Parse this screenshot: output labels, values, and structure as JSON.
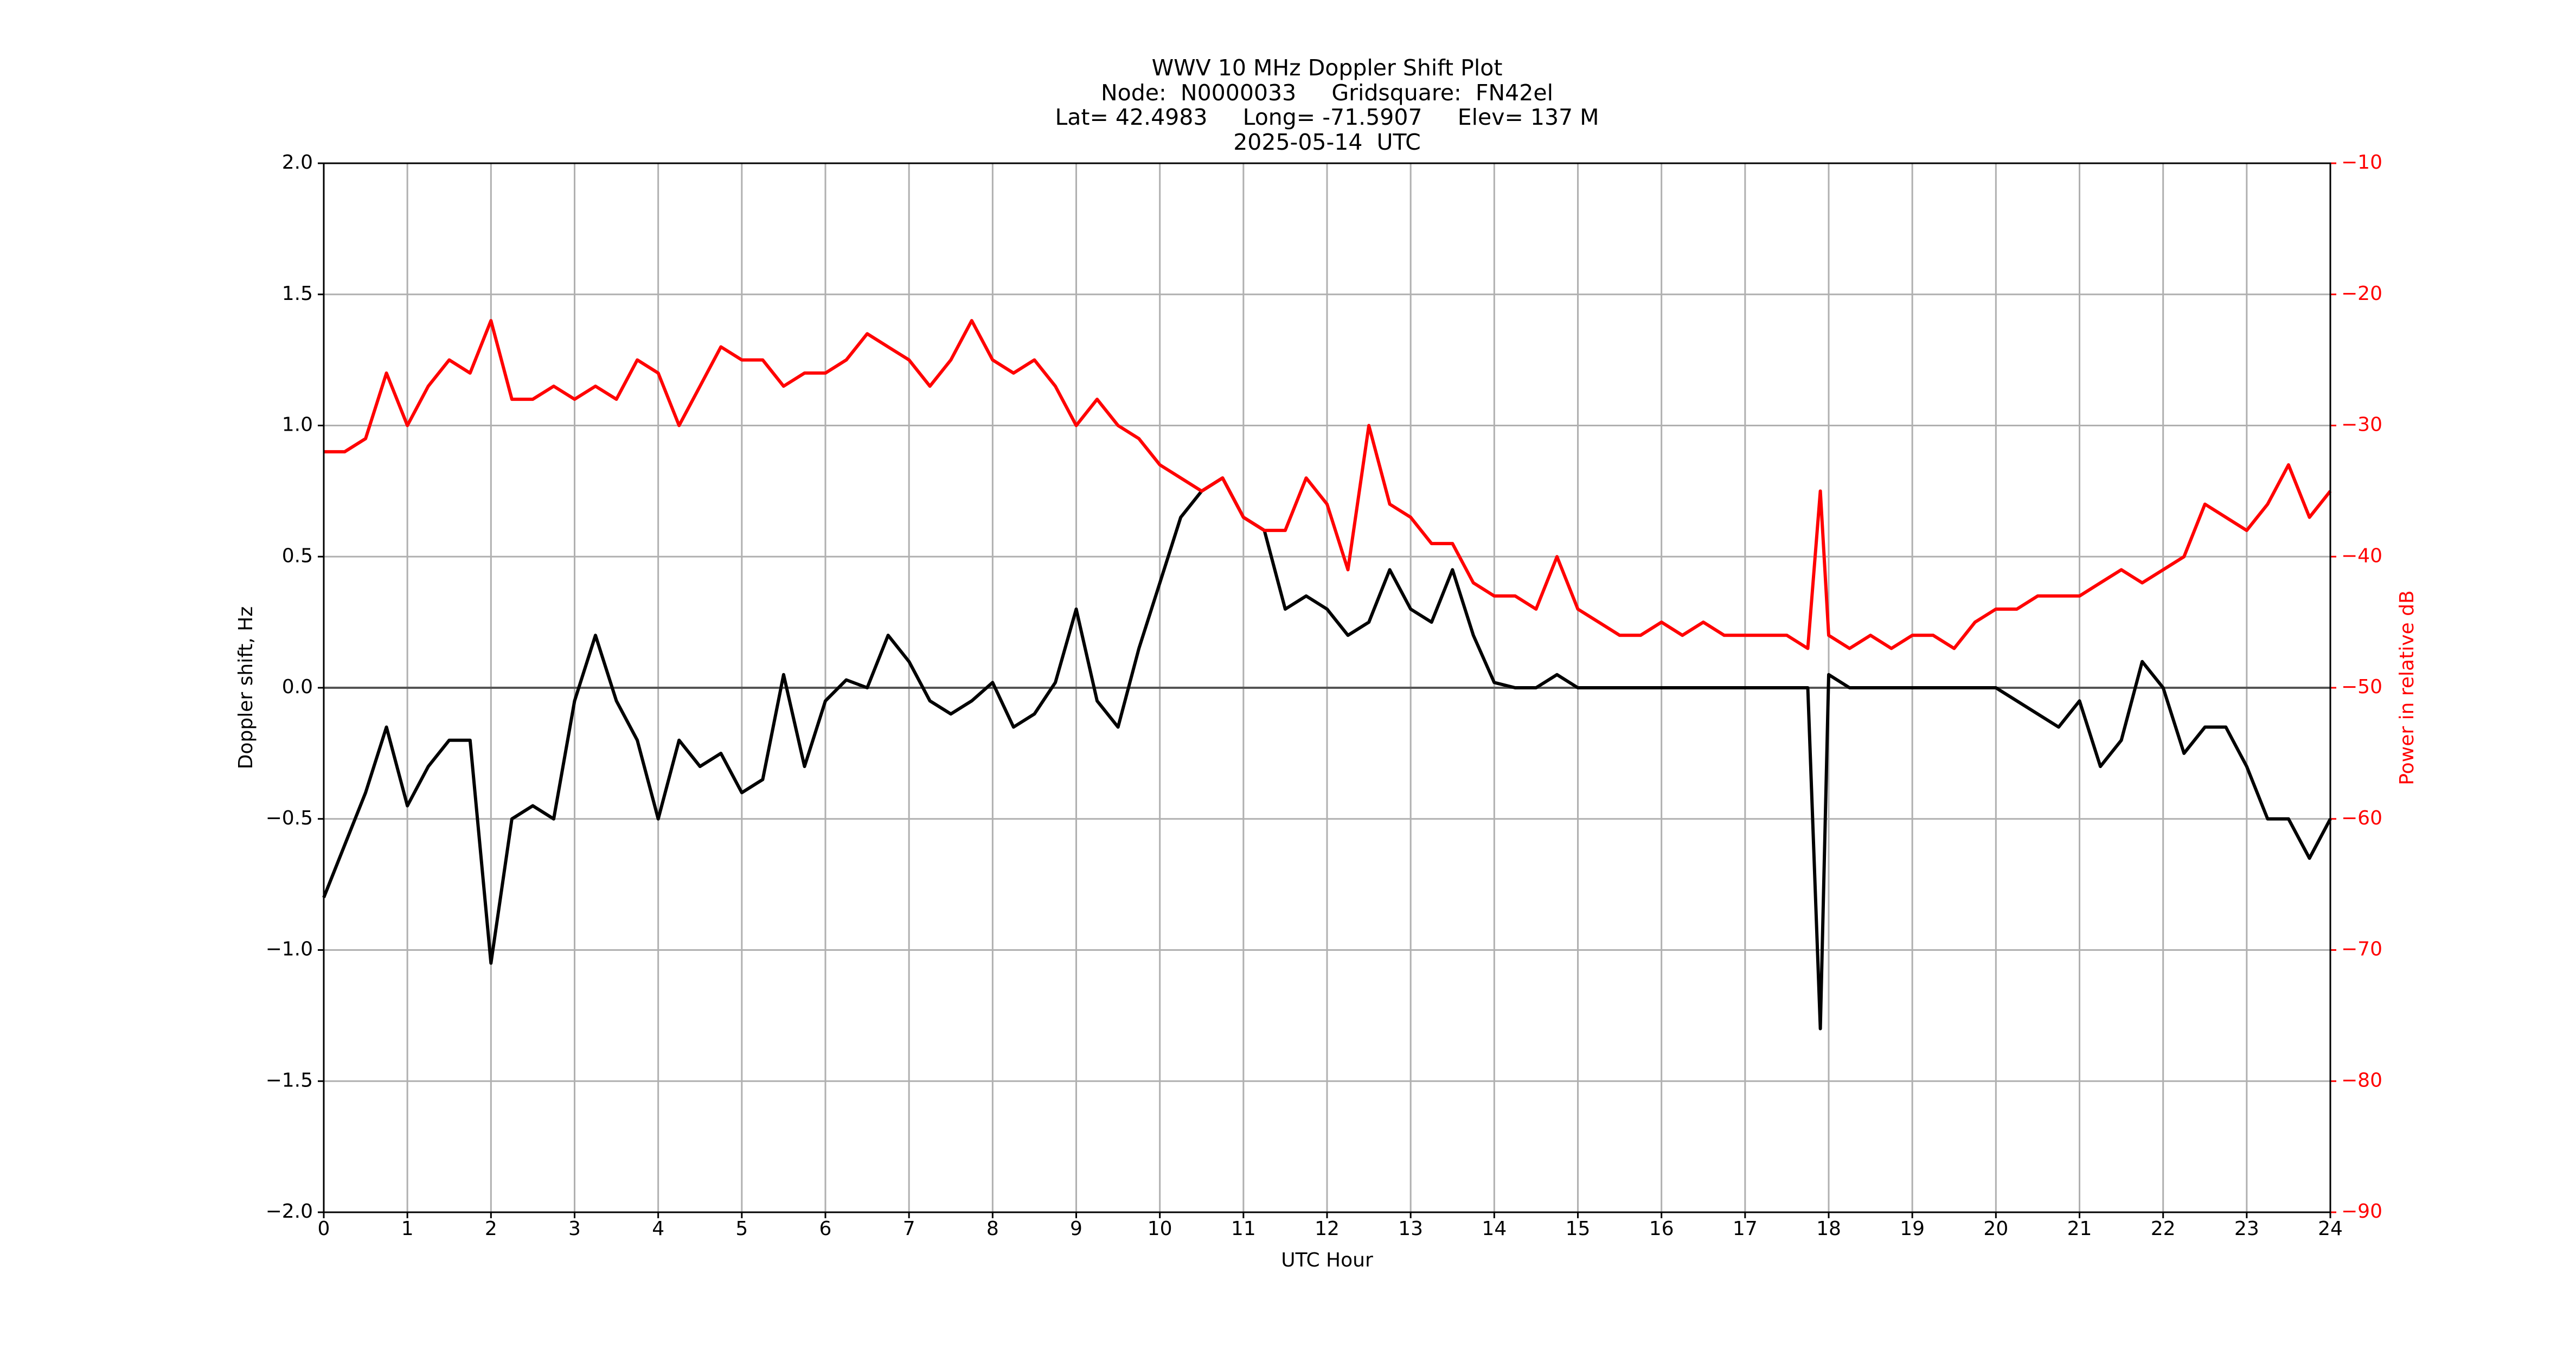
{
  "chart_data": {
    "type": "line",
    "title_lines": [
      "WWV 10 MHz Doppler Shift Plot",
      "Node:  N0000033     Gridsquare:  FN42el",
      "Lat= 42.4983     Long= -71.5907     Elev= 137 M",
      "2025-05-14  UTC"
    ],
    "xlabel": "UTC Hour",
    "ylabel": "Doppler shift, Hz",
    "y2label": "Power in relative dB",
    "y2label_color": "#ff0000",
    "xlim": [
      0,
      24
    ],
    "xticks": [
      0,
      1,
      2,
      3,
      4,
      5,
      6,
      7,
      8,
      9,
      10,
      11,
      12,
      13,
      14,
      15,
      16,
      17,
      18,
      19,
      20,
      21,
      22,
      23,
      24
    ],
    "ylim": [
      -2,
      2
    ],
    "yticks": [
      {
        "value": -2,
        "label": "−2.0"
      },
      {
        "value": -1.5,
        "label": "−1.5"
      },
      {
        "value": -1,
        "label": "−1.0"
      },
      {
        "value": -0.5,
        "label": "−0.5"
      },
      {
        "value": 0,
        "label": "0.0"
      },
      {
        "value": 0.5,
        "label": "0.5"
      },
      {
        "value": 1,
        "label": "1.0"
      },
      {
        "value": 1.5,
        "label": "1.5"
      },
      {
        "value": 2,
        "label": "2.0"
      }
    ],
    "y2lim": [
      -90,
      -10
    ],
    "y2ticks": [
      {
        "value": -90,
        "label": "−90"
      },
      {
        "value": -80,
        "label": "−80"
      },
      {
        "value": -70,
        "label": "−70"
      },
      {
        "value": -60,
        "label": "−60"
      },
      {
        "value": -50,
        "label": "−50"
      },
      {
        "value": -40,
        "label": "−40"
      },
      {
        "value": -30,
        "label": "−30"
      },
      {
        "value": -20,
        "label": "−20"
      },
      {
        "value": -10,
        "label": "−10"
      }
    ],
    "grid": true,
    "x": [
      0,
      0.25,
      0.5,
      0.75,
      1,
      1.25,
      1.5,
      1.75,
      2,
      2.25,
      2.5,
      2.75,
      3,
      3.25,
      3.5,
      3.75,
      4,
      4.25,
      4.5,
      4.75,
      5,
      5.25,
      5.5,
      5.75,
      6,
      6.25,
      6.5,
      6.75,
      7,
      7.25,
      7.5,
      7.75,
      8,
      8.25,
      8.5,
      8.75,
      9,
      9.25,
      9.5,
      9.75,
      10,
      10.25,
      10.5,
      10.75,
      11,
      11.25,
      11.5,
      11.75,
      12,
      12.25,
      12.5,
      12.75,
      13,
      13.25,
      13.5,
      13.75,
      14,
      14.25,
      14.5,
      14.75,
      15,
      15.25,
      15.5,
      15.75,
      16,
      16.25,
      16.5,
      16.75,
      17,
      17.25,
      17.5,
      17.75,
      17.9,
      18,
      18.25,
      18.5,
      18.75,
      19,
      19.25,
      19.5,
      19.75,
      20,
      20.25,
      20.5,
      20.75,
      21,
      21.25,
      21.5,
      21.75,
      22,
      22.25,
      22.5,
      22.75,
      23,
      23.25,
      23.5,
      23.75,
      24
    ],
    "series": [
      {
        "color": "#000000",
        "values": [
          -0.8,
          -0.6,
          -0.4,
          -0.15,
          -0.45,
          -0.3,
          -0.2,
          -0.2,
          -1.05,
          -0.5,
          -0.45,
          -0.5,
          -0.05,
          0.2,
          -0.05,
          -0.2,
          -0.5,
          -0.2,
          -0.3,
          -0.25,
          -0.4,
          -0.35,
          0.05,
          -0.3,
          -0.05,
          0.03,
          0,
          0.2,
          0.1,
          -0.05,
          -0.1,
          -0.05,
          0.02,
          -0.15,
          -0.1,
          0.02,
          0.3,
          -0.05,
          -0.15,
          0.15,
          0.4,
          0.65,
          0.75,
          0.8,
          0.65,
          0.6,
          0.3,
          0.35,
          0.3,
          0.2,
          0.25,
          0.45,
          0.3,
          0.25,
          0.45,
          0.2,
          0.02,
          0,
          0,
          0.05,
          0,
          0,
          0,
          0,
          0,
          0,
          0,
          0,
          0,
          0,
          0,
          0,
          -1.3,
          0.05,
          0,
          0,
          0,
          0,
          0,
          0,
          0,
          0,
          -0.05,
          -0.1,
          -0.15,
          -0.05,
          -0.3,
          -0.2,
          0.1,
          0,
          -0.25,
          -0.15,
          -0.15,
          -0.3,
          -0.5,
          -0.5,
          -0.65,
          -0.5
        ]
      },
      {
        "color": "#ff0000",
        "axis": "y2",
        "values": [
          -32,
          -32,
          -31,
          -26,
          -30,
          -27,
          -25,
          -26,
          -22,
          -28,
          -28,
          -27,
          -28,
          -27,
          -28,
          -25,
          -26,
          -30,
          -27,
          -24,
          -25,
          -25,
          -27,
          -26,
          -26,
          -25,
          -23,
          -24,
          -25,
          -27,
          -25,
          -22,
          -25,
          -26,
          -25,
          -27,
          -30,
          -28,
          -30,
          -31,
          -33,
          -34,
          -35,
          -34,
          -37,
          -38,
          -38,
          -34,
          -36,
          -41,
          -30,
          -36,
          -37,
          -39,
          -39,
          -42,
          -43,
          -43,
          -44,
          -40,
          -44,
          -45,
          -46,
          -46,
          -45,
          -46,
          -45,
          -46,
          -46,
          -46,
          -46,
          -47,
          -35,
          -46,
          -47,
          -46,
          -47,
          -46,
          -46,
          -47,
          -45,
          -44,
          -44,
          -43,
          -43,
          -43,
          -42,
          -41,
          -42,
          -41,
          -40,
          -36,
          -37,
          -38,
          -36,
          -33,
          -37,
          -35
        ]
      }
    ]
  }
}
